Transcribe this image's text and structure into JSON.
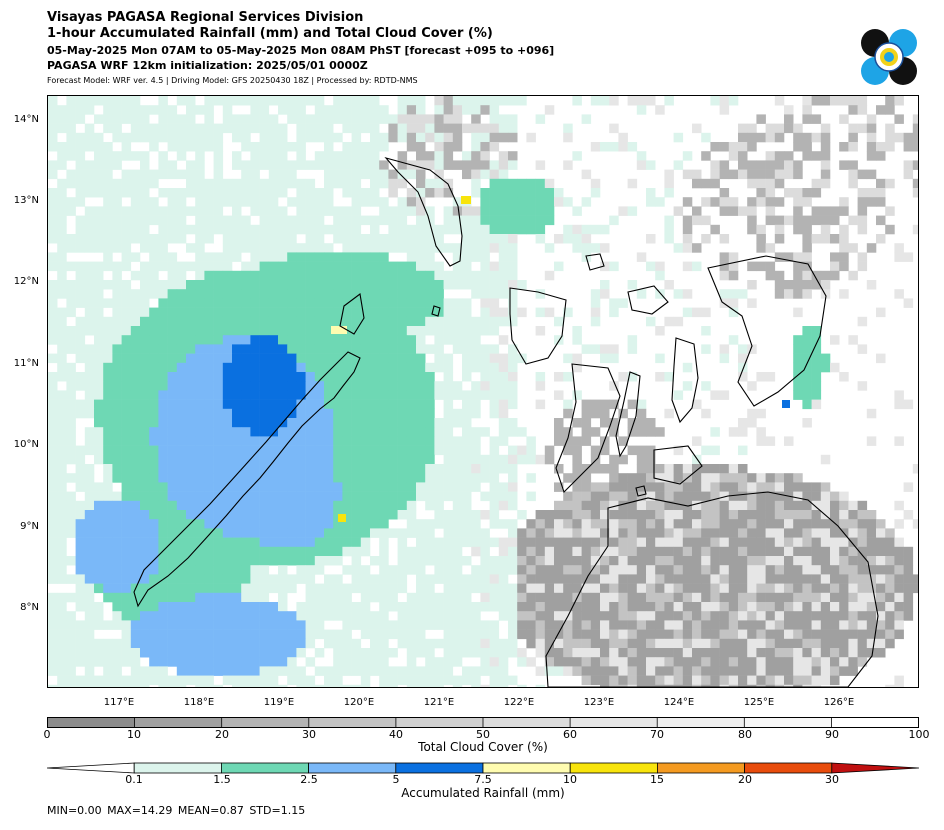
{
  "header": {
    "line1": "Visayas PAGASA Regional Services Division",
    "line2": "1-hour Accumulated Rainfall (mm) and Total Cloud Cover (%)",
    "line3": "05-May-2025 Mon 07AM to 05-May-2025 Mon 08AM PhST [forecast +095 to +096]",
    "line4": "PAGASA WRF 12km initialization: 2025/05/01 0000Z",
    "line5": "Forecast Model: WRF ver. 4.5 | Driving Model: GFS 20250430 18Z | Processed by: RDTD-NMS"
  },
  "map": {
    "lat_labels": [
      "14°N",
      "13°N",
      "12°N",
      "11°N",
      "10°N",
      "9°N",
      "8°N"
    ],
    "lon_labels": [
      "117°E",
      "118°E",
      "119°E",
      "120°E",
      "121°E",
      "122°E",
      "123°E",
      "124°E",
      "125°E",
      "126°E"
    ]
  },
  "cloud_colorbar": {
    "title": "Total Cloud Cover (%)",
    "ticks": [
      "0",
      "10",
      "20",
      "30",
      "40",
      "50",
      "60",
      "70",
      "80",
      "90",
      "100"
    ],
    "colors": [
      "#8c8c8c",
      "#a0a0a0",
      "#b3b3b3",
      "#c3c3c3",
      "#d0d0d0",
      "#dcdcdc",
      "#e6e6e6",
      "#efefef",
      "#f7f7f7",
      "#ffffff"
    ]
  },
  "rain_colorbar": {
    "title": "Accumulated Rainfall (mm)",
    "ticks": [
      "0.1",
      "1.5",
      "2.5",
      "5",
      "7.5",
      "10",
      "15",
      "20",
      "30"
    ],
    "colors": [
      "#ffffff",
      "#dcf4ec",
      "#6ed8b4",
      "#7ab8f8",
      "#0a70e0",
      "#fffcb0",
      "#f8e40c",
      "#f49a20",
      "#e84c0c",
      "#c01010"
    ]
  },
  "stats": {
    "text": "MIN=0.00   MAX=14.29   MEAN=0.87   STD=1.15"
  }
}
